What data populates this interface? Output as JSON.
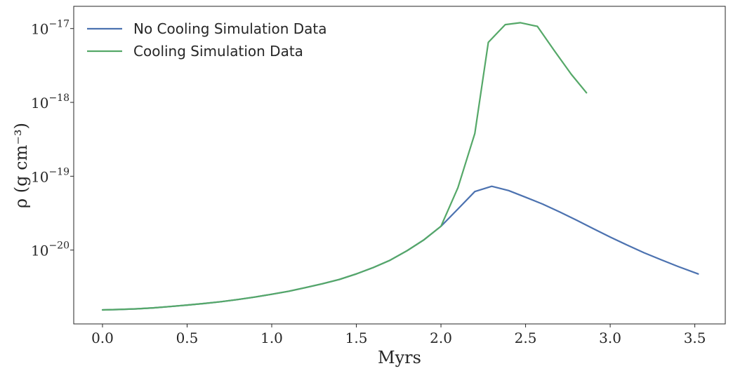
{
  "chart_data": {
    "type": "line",
    "title": "",
    "xlabel": "Myrs",
    "ylabel": "ρ (g cm⁻³)",
    "xlim": [
      -0.17,
      3.68
    ],
    "ylim": [
      1e-21,
      2e-17
    ],
    "yscale": "log",
    "grid": false,
    "legend_position": "top-left",
    "x_ticks": [
      0.0,
      0.5,
      1.0,
      1.5,
      2.0,
      2.5,
      3.0,
      3.5
    ],
    "x_tick_labels": [
      "0.0",
      "0.5",
      "1.0",
      "1.5",
      "2.0",
      "2.5",
      "3.0",
      "3.5"
    ],
    "y_ticks": [
      1e-20,
      1e-19,
      1e-18,
      1e-17
    ],
    "y_tick_labels": [
      {
        "base": "10",
        "exp": "−20"
      },
      {
        "base": "10",
        "exp": "−19"
      },
      {
        "base": "10",
        "exp": "−18"
      },
      {
        "base": "10",
        "exp": "−17"
      }
    ],
    "series": [
      {
        "name": "No Cooling Simulation Data",
        "color": "#4c72b0",
        "x": [
          0.0,
          0.1,
          0.2,
          0.3,
          0.4,
          0.5,
          0.6,
          0.7,
          0.8,
          0.9,
          1.0,
          1.1,
          1.2,
          1.3,
          1.4,
          1.5,
          1.6,
          1.7,
          1.8,
          1.9,
          2.0,
          2.1,
          2.2,
          2.3,
          2.4,
          2.5,
          2.6,
          2.7,
          2.8,
          2.9,
          3.0,
          3.1,
          3.2,
          3.3,
          3.4,
          3.52
        ],
        "y": [
          1.55e-21,
          1.57e-21,
          1.6e-21,
          1.65e-21,
          1.72e-21,
          1.8e-21,
          1.89e-21,
          2e-21,
          2.14e-21,
          2.31e-21,
          2.52e-21,
          2.77e-21,
          3.1e-21,
          3.5e-21,
          4e-21,
          4.75e-21,
          5.8e-21,
          7.3e-21,
          9.8e-21,
          1.38e-20,
          2.1e-20,
          3.6e-20,
          6.2e-20,
          7.3e-20,
          6.4e-20,
          5.2e-20,
          4.2e-20,
          3.3e-20,
          2.55e-20,
          1.95e-20,
          1.5e-20,
          1.17e-20,
          9.2e-21,
          7.4e-21,
          6e-21,
          4.75e-21
        ]
      },
      {
        "name": "Cooling Simulation Data",
        "color": "#55a868",
        "x": [
          0.0,
          0.1,
          0.2,
          0.3,
          0.4,
          0.5,
          0.6,
          0.7,
          0.8,
          0.9,
          1.0,
          1.1,
          1.2,
          1.3,
          1.4,
          1.5,
          1.6,
          1.7,
          1.8,
          1.9,
          2.0,
          2.1,
          2.2,
          2.28,
          2.38,
          2.47,
          2.57,
          2.67,
          2.77,
          2.86
        ],
        "y": [
          1.55e-21,
          1.57e-21,
          1.6e-21,
          1.65e-21,
          1.72e-21,
          1.8e-21,
          1.89e-21,
          2e-21,
          2.14e-21,
          2.31e-21,
          2.52e-21,
          2.77e-21,
          3.1e-21,
          3.5e-21,
          4e-21,
          4.75e-21,
          5.8e-21,
          7.3e-21,
          9.8e-21,
          1.38e-20,
          2.1e-20,
          7e-20,
          3.8e-19,
          6.5e-18,
          1.13e-17,
          1.2e-17,
          1.07e-17,
          5e-18,
          2.4e-18,
          1.35e-18
        ]
      }
    ]
  }
}
